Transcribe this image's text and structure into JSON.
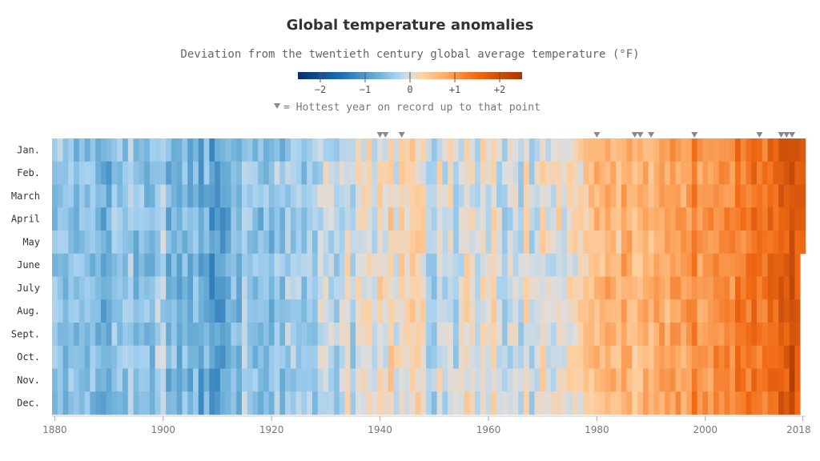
{
  "chart_data": {
    "type": "heatmap",
    "title": "Global temperature anomalies",
    "subtitle": "Deviation from the twentieth century global average temperature (°F)",
    "unit": "°F",
    "x_start": 1880,
    "x_end": 2018,
    "last_data": {
      "year": 2018,
      "month_index": 4
    },
    "months": [
      "Jan.",
      "Feb.",
      "March",
      "April",
      "May",
      "June",
      "July",
      "Aug.",
      "Sept.",
      "Oct.",
      "Nov.",
      "Dec."
    ],
    "x_ticks": [
      1880,
      1900,
      1920,
      1940,
      1960,
      1980,
      2000,
      2018
    ],
    "color_scale": {
      "min": -2.5,
      "max": 2.5,
      "stops": [
        {
          "value": -2.5,
          "color": "#08306b"
        },
        {
          "value": -1.5,
          "color": "#2171b5"
        },
        {
          "value": -0.75,
          "color": "#6baed6"
        },
        {
          "value": -0.3,
          "color": "#a6d1f0"
        },
        {
          "value": 0,
          "color": "#dddddd"
        },
        {
          "value": 0.3,
          "color": "#fdd0a2"
        },
        {
          "value": 0.75,
          "color": "#fdae6b"
        },
        {
          "value": 1.5,
          "color": "#f16913"
        },
        {
          "value": 2.5,
          "color": "#a63603"
        }
      ]
    },
    "legend": {
      "ticks": [
        {
          "value": -2,
          "label": "−2"
        },
        {
          "value": -1,
          "label": "−1"
        },
        {
          "value": 0,
          "label": "0"
        },
        {
          "value": 1,
          "label": "+1"
        },
        {
          "value": 2,
          "label": "+2"
        }
      ],
      "note": "= Hottest year on record up to that point"
    },
    "record_years": [
      1940,
      1941,
      1944,
      1980,
      1987,
      1988,
      1990,
      1998,
      2010,
      2014,
      2015,
      2016
    ],
    "annual_anomaly": [
      {
        "year": 1880,
        "value": -0.3
      },
      {
        "year": 1890,
        "value": -0.6
      },
      {
        "year": 1900,
        "value": -0.45
      },
      {
        "year": 1905,
        "value": -0.7
      },
      {
        "year": 1910,
        "value": -0.85
      },
      {
        "year": 1915,
        "value": -0.4
      },
      {
        "year": 1920,
        "value": -0.5
      },
      {
        "year": 1925,
        "value": -0.4
      },
      {
        "year": 1930,
        "value": -0.25
      },
      {
        "year": 1938,
        "value": -0.05
      },
      {
        "year": 1944,
        "value": 0.3
      },
      {
        "year": 1950,
        "value": -0.2
      },
      {
        "year": 1960,
        "value": 0.0
      },
      {
        "year": 1970,
        "value": 0.0
      },
      {
        "year": 1976,
        "value": -0.05
      },
      {
        "year": 1980,
        "value": 0.5
      },
      {
        "year": 1990,
        "value": 0.8
      },
      {
        "year": 1998,
        "value": 1.1
      },
      {
        "year": 2005,
        "value": 1.25
      },
      {
        "year": 2012,
        "value": 1.35
      },
      {
        "year": 2016,
        "value": 1.95
      },
      {
        "year": 2018,
        "value": 1.75
      }
    ]
  }
}
